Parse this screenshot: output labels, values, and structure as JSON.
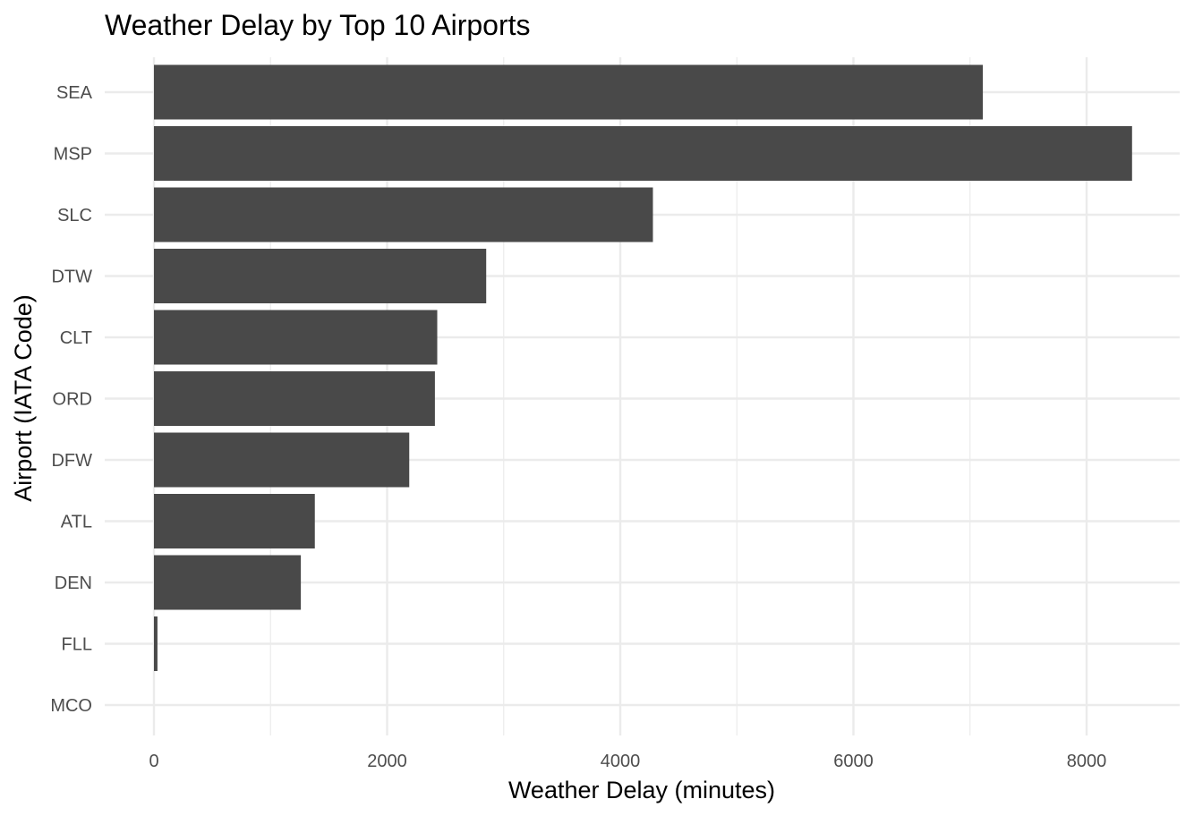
{
  "chart_data": {
    "type": "bar",
    "orientation": "horizontal",
    "title": "Weather Delay by Top 10 Airports",
    "xlabel": "Weather Delay (minutes)",
    "ylabel": "Airport (IATA Code)",
    "categories": [
      "SEA",
      "MSP",
      "SLC",
      "DTW",
      "CLT",
      "ORD",
      "DFW",
      "ATL",
      "DEN",
      "FLL",
      "MCO"
    ],
    "values": [
      7110,
      8390,
      4280,
      2850,
      2430,
      2410,
      2190,
      1380,
      1260,
      30,
      0
    ],
    "xlim": [
      -420,
      8800
    ],
    "xticks": [
      0,
      2000,
      4000,
      6000,
      8000
    ],
    "xtick_labels": [
      "0",
      "2000",
      "4000",
      "6000",
      "8000"
    ],
    "grid": true,
    "bar_color": "#494949",
    "grid_color": "#ebebeb"
  }
}
